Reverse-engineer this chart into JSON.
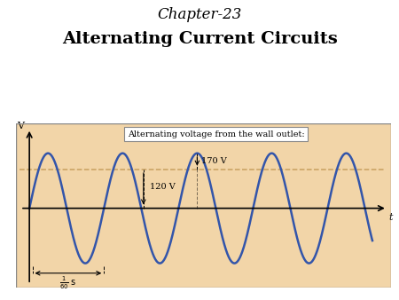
{
  "title_line1": "Chapter-23",
  "title_line2": "Alternating Current Circuits",
  "page_bg": "#FFFFFF",
  "panel_bg": "#F2D5A8",
  "sine_color": "#3355AA",
  "sine_linewidth": 1.8,
  "dashed_color": "#C8A060",
  "amplitude": 1.0,
  "rms_level": 0.707,
  "label_box_text": "Alternating voltage from the wall outlet:",
  "annotation_120": "120 V",
  "annotation_170": "170 V",
  "xlabel": "t",
  "ylabel": "V",
  "num_cycles": 4.6
}
